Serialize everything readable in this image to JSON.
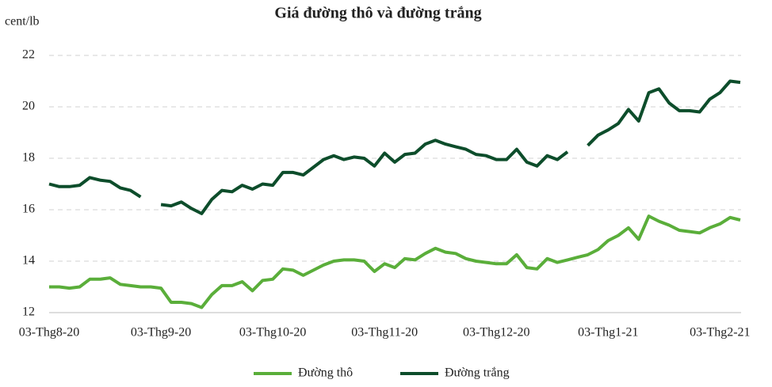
{
  "chart_data": {
    "type": "line",
    "title": "Giá đường thô và đường trắng",
    "y_label": "cent/lb",
    "categories": [
      "03-Thg8-20",
      null,
      null,
      null,
      null,
      null,
      null,
      null,
      null,
      null,
      null,
      "03-Thg9-20",
      null,
      null,
      null,
      null,
      null,
      null,
      null,
      null,
      null,
      null,
      "03-Thg10-20",
      null,
      null,
      null,
      null,
      null,
      null,
      null,
      null,
      null,
      null,
      "03-Thg11-20",
      null,
      null,
      null,
      null,
      null,
      null,
      null,
      null,
      null,
      null,
      "03-Thg12-20",
      null,
      null,
      null,
      null,
      null,
      null,
      null,
      null,
      null,
      null,
      "03-Thg1-21",
      null,
      null,
      null,
      null,
      null,
      null,
      null,
      null,
      null,
      null,
      "03-Thg2-21",
      null,
      null
    ],
    "series": [
      {
        "name": "Đường thô",
        "color": "#5aae3a",
        "values": [
          13.0,
          13.0,
          12.95,
          13.0,
          13.3,
          13.3,
          13.35,
          13.1,
          13.05,
          13.0,
          13.0,
          12.95,
          12.4,
          12.4,
          12.35,
          12.2,
          12.7,
          13.05,
          13.05,
          13.2,
          12.85,
          13.25,
          13.3,
          13.7,
          13.65,
          13.45,
          13.65,
          13.85,
          14.0,
          14.05,
          14.05,
          14.0,
          13.6,
          13.9,
          13.75,
          14.1,
          14.05,
          14.3,
          14.5,
          14.35,
          14.3,
          14.1,
          14.0,
          13.95,
          13.9,
          13.9,
          14.25,
          13.75,
          13.7,
          14.1,
          13.95,
          14.05,
          14.15,
          14.25,
          14.45,
          14.8,
          15.0,
          15.3,
          14.85,
          15.75,
          15.55,
          15.4,
          15.2,
          15.15,
          15.1,
          15.3,
          15.45,
          15.7,
          15.6
        ]
      },
      {
        "name": "Đường trắng",
        "color": "#0d4d2b",
        "values": [
          17.0,
          16.9,
          16.9,
          16.95,
          17.25,
          17.15,
          17.1,
          16.85,
          16.75,
          16.5,
          null,
          16.2,
          16.15,
          16.3,
          16.05,
          15.85,
          16.4,
          16.75,
          16.7,
          16.95,
          16.8,
          17.0,
          16.95,
          17.45,
          17.45,
          17.35,
          17.65,
          17.95,
          18.1,
          17.95,
          18.05,
          18.0,
          17.7,
          18.2,
          17.85,
          18.15,
          18.2,
          18.55,
          18.7,
          18.55,
          18.45,
          18.35,
          18.15,
          18.1,
          17.95,
          17.95,
          18.35,
          17.85,
          17.7,
          18.1,
          17.95,
          18.25,
          null,
          18.5,
          18.9,
          19.1,
          19.35,
          19.9,
          19.45,
          20.55,
          20.7,
          20.15,
          19.85,
          19.85,
          19.8,
          20.3,
          20.55,
          21.0,
          20.95
        ]
      }
    ],
    "ylim": [
      12,
      22
    ],
    "yticks": [
      12,
      14,
      16,
      18,
      20,
      22
    ],
    "grid": true,
    "legend": "bottom"
  }
}
